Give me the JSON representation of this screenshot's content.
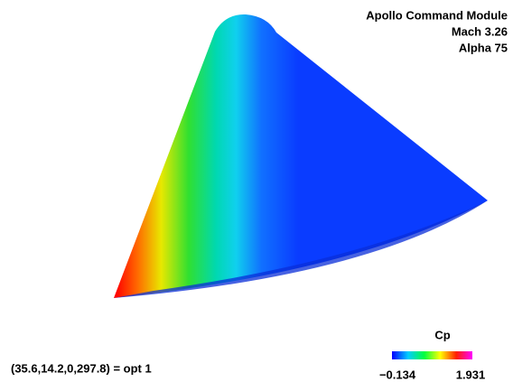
{
  "title_lines": [
    "Apollo Command Module",
    "Mach 3.26",
    "Alpha 75"
  ],
  "view_label": "(35.6,14.2,0,297.8) = opt 1",
  "colorbar": {
    "label": "Cp",
    "min_label": "−0.134",
    "max_label": "1.931"
  }
}
